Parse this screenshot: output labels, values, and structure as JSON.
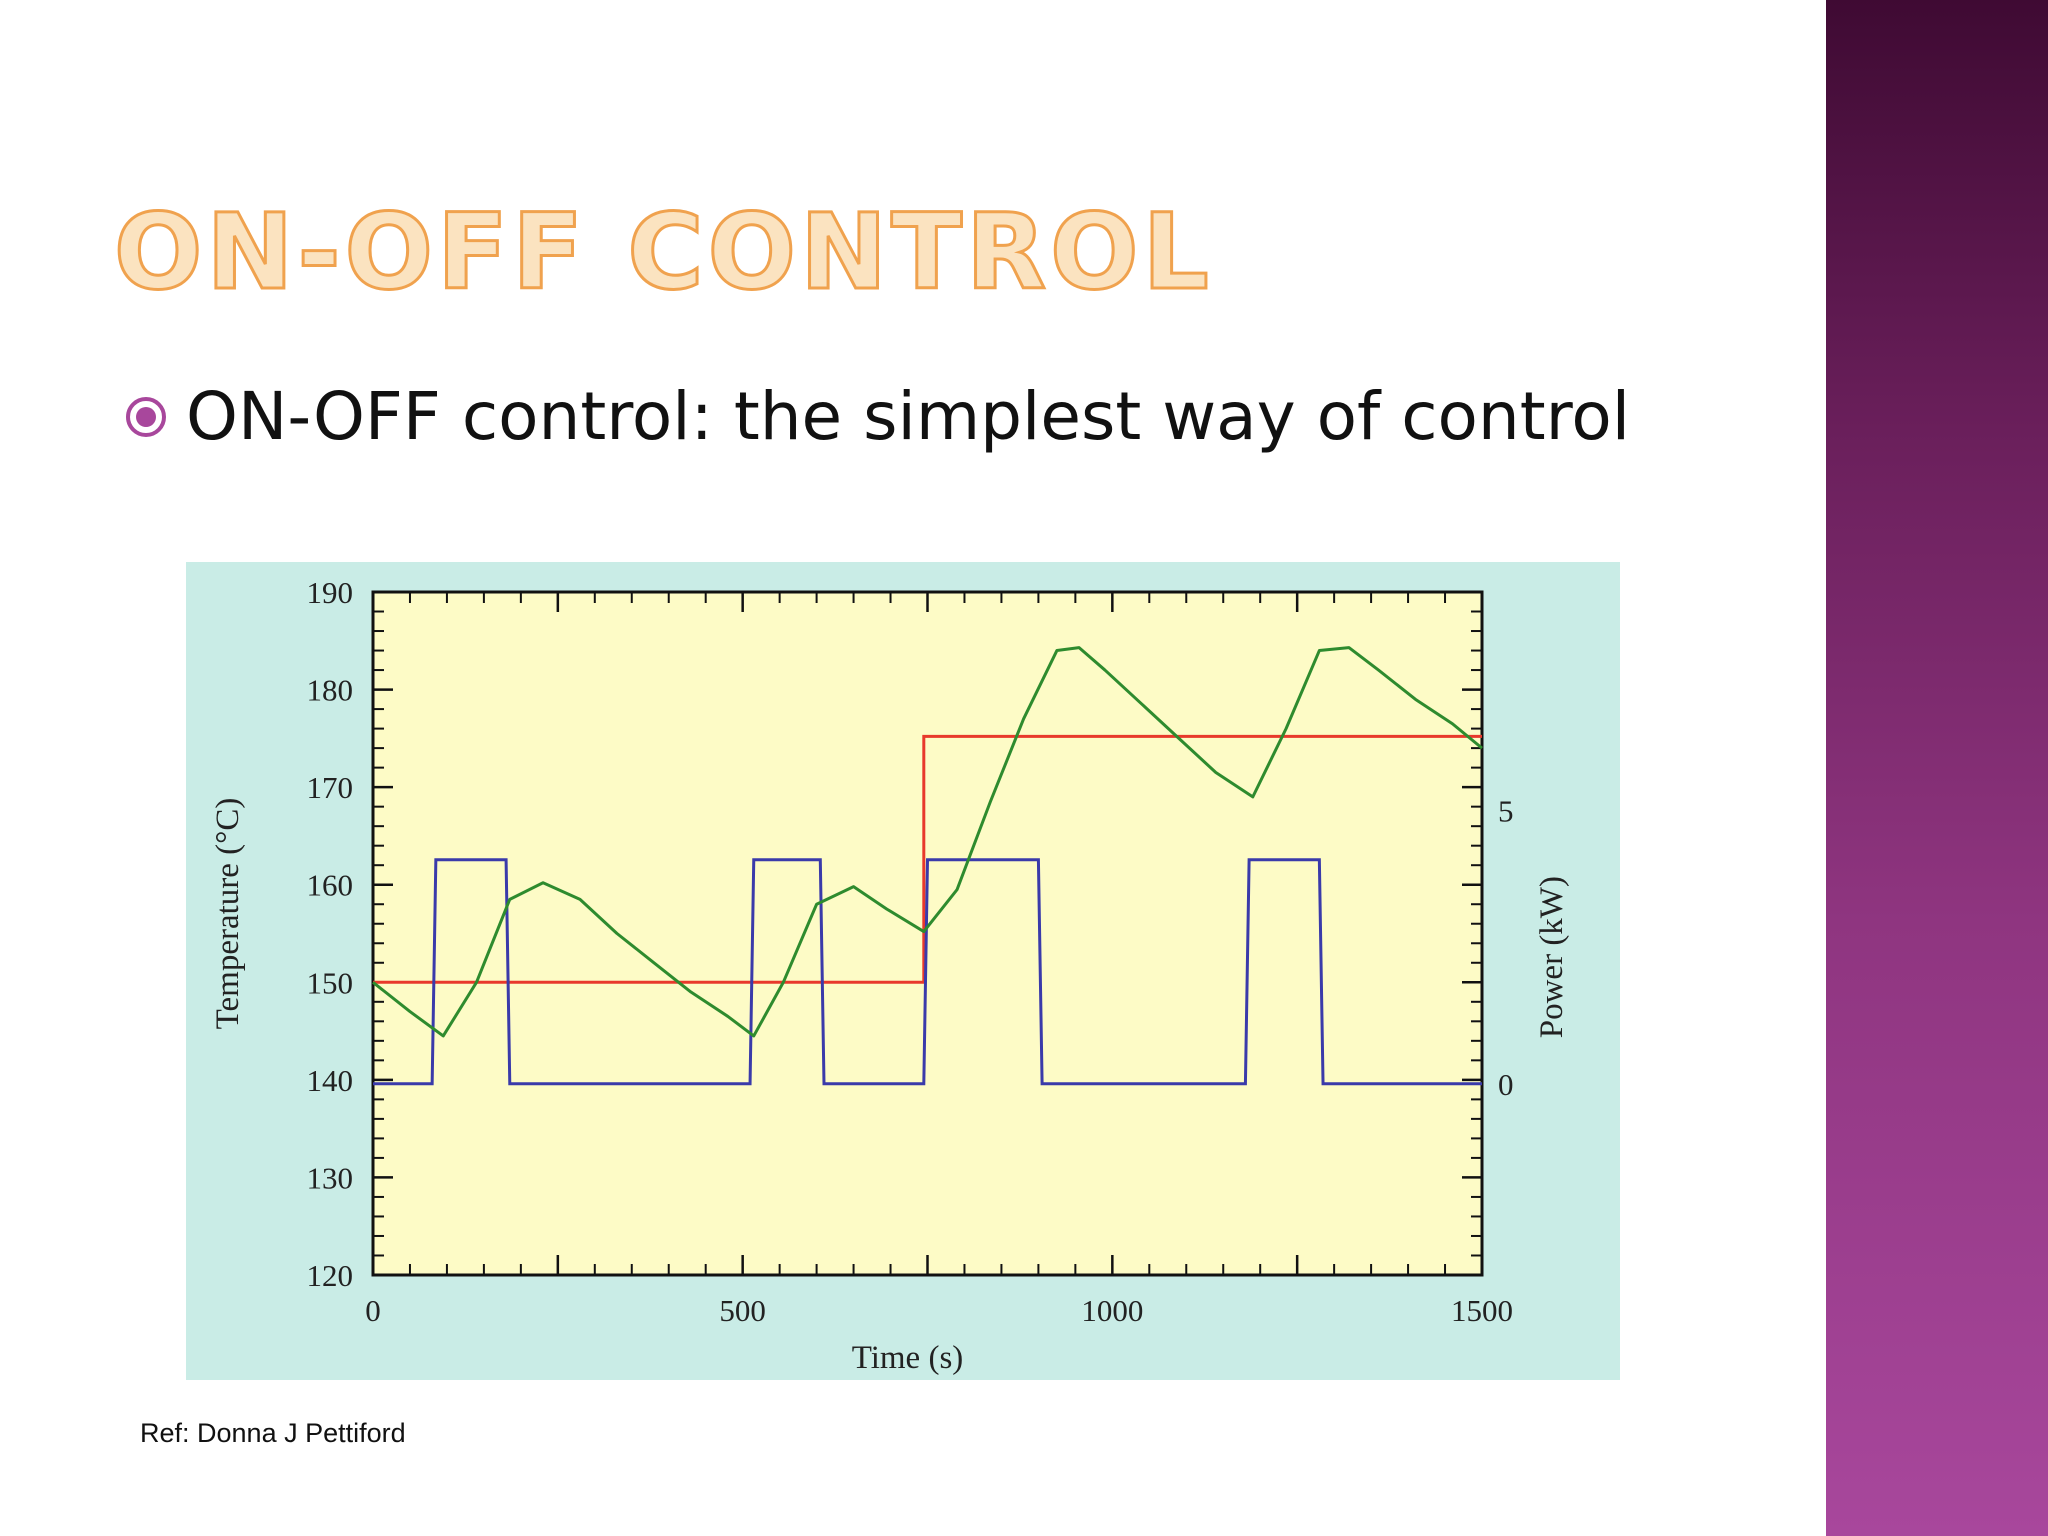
{
  "slide": {
    "title": "ON-OFF CONTROL",
    "bullet": "ON-OFF control: the simplest way of control",
    "reference": "Ref: Donna J Pettiford",
    "colors": {
      "title_fill": "#fbe3c0",
      "title_outline": "#f0a24e",
      "bullet_icon": "#a8479c",
      "side_band": "#8f3580"
    }
  },
  "chart_data": {
    "type": "line",
    "title": "",
    "xlabel": "Time (s)",
    "ylabel": "Temperature (°C)",
    "y2label": "Power (kW)",
    "xlim": [
      0,
      1500
    ],
    "ylim": [
      120,
      190
    ],
    "y2lim": [
      -3.5,
      9.0
    ],
    "x_ticks": [
      "0",
      "500",
      "1000",
      "1500"
    ],
    "y_ticks": [
      "120",
      "130",
      "140",
      "150",
      "160",
      "170",
      "180",
      "190"
    ],
    "y2_ticks": [
      "0",
      "5"
    ],
    "grid": false,
    "colors": {
      "outer_background": "#c9ece6",
      "plot_background": "#fdfbc6",
      "temperature": "#2e8b2e",
      "setpoint": "#e8392b",
      "power": "#3a3aaa"
    },
    "series": [
      {
        "axis": "left",
        "role": "temperature",
        "x": [
          0,
          50,
          95,
          140,
          185,
          230,
          280,
          330,
          380,
          430,
          480,
          515,
          555,
          600,
          650,
          695,
          745,
          790,
          835,
          880,
          925,
          955,
          990,
          1040,
          1090,
          1140,
          1190,
          1235,
          1280,
          1320,
          1360,
          1410,
          1460,
          1500
        ],
        "y": [
          150,
          147,
          144.5,
          150,
          158.5,
          160.2,
          158.5,
          155,
          152,
          149,
          146.5,
          144.5,
          150,
          158,
          159.8,
          157.5,
          155.2,
          159.5,
          168.5,
          177,
          184,
          184.3,
          182,
          178.5,
          175,
          171.5,
          169,
          176,
          184,
          184.3,
          182,
          179,
          176.5,
          174
        ]
      },
      {
        "axis": "left",
        "role": "setpoint",
        "x": [
          0,
          745,
          745,
          1500
        ],
        "y": [
          150,
          150,
          175.2,
          175.2
        ]
      },
      {
        "axis": "right",
        "role": "power",
        "x": [
          0,
          80,
          85,
          180,
          185,
          510,
          515,
          605,
          610,
          745,
          750,
          900,
          905,
          1180,
          1185,
          1280,
          1285,
          1500
        ],
        "y": [
          0,
          0,
          4.1,
          4.1,
          0,
          0,
          4.1,
          4.1,
          0,
          0,
          4.1,
          4.1,
          0,
          0,
          4.1,
          4.1,
          0,
          0
        ]
      }
    ]
  }
}
